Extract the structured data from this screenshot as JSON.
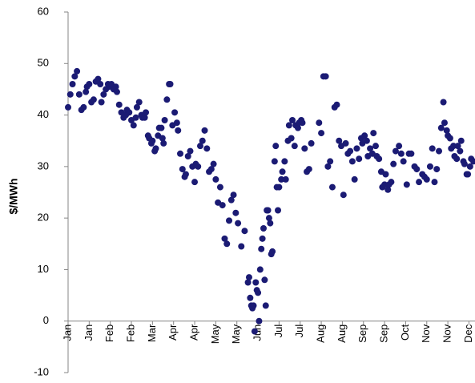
{
  "chart_data": {
    "type": "scatter",
    "y_label": "$/MWh",
    "color": "#1b1b74",
    "xlim": [
      0,
      365
    ],
    "ylim": [
      -10,
      60
    ],
    "yticks": [
      -10,
      0,
      10,
      20,
      30,
      40,
      50,
      60
    ],
    "xticks": [
      {
        "value": 0,
        "label": "Jan"
      },
      {
        "value": 19,
        "label": "Jan"
      },
      {
        "value": 38,
        "label": "Feb"
      },
      {
        "value": 57,
        "label": "Feb"
      },
      {
        "value": 76,
        "label": "Mar"
      },
      {
        "value": 95,
        "label": "Apr"
      },
      {
        "value": 114,
        "label": "Apr"
      },
      {
        "value": 133,
        "label": "May"
      },
      {
        "value": 152,
        "label": "May"
      },
      {
        "value": 171,
        "label": "Jun"
      },
      {
        "value": 190,
        "label": "Jul"
      },
      {
        "value": 209,
        "label": "Jul"
      },
      {
        "value": 228,
        "label": "Aug"
      },
      {
        "value": 247,
        "label": "Aug"
      },
      {
        "value": 266,
        "label": "Sep"
      },
      {
        "value": 285,
        "label": "Sep"
      },
      {
        "value": 304,
        "label": "Oct"
      },
      {
        "value": 323,
        "label": "Nov"
      },
      {
        "value": 342,
        "label": "Nov"
      },
      {
        "value": 361,
        "label": "Dec"
      }
    ],
    "x": [
      0,
      2,
      4,
      6,
      8,
      10,
      12,
      14,
      16,
      17,
      19,
      21,
      23,
      25,
      27,
      29,
      30,
      32,
      34,
      36,
      37,
      39,
      41,
      43,
      44,
      46,
      48,
      50,
      52,
      53,
      55,
      57,
      59,
      61,
      62,
      64,
      66,
      67,
      69,
      70,
      72,
      73,
      75,
      76,
      78,
      79,
      81,
      82,
      84,
      85,
      86,
      87,
      89,
      91,
      92,
      94,
      96,
      98,
      99,
      101,
      103,
      105,
      106,
      108,
      110,
      112,
      114,
      115,
      117,
      119,
      121,
      123,
      125,
      127,
      129,
      131,
      133,
      135,
      137,
      139,
      141,
      143,
      145,
      147,
      149,
      151,
      153,
      156,
      159,
      162,
      163,
      164,
      165,
      166,
      167,
      168,
      169,
      170,
      171,
      172,
      173,
      174,
      175,
      176,
      177,
      178,
      179,
      180,
      181,
      182,
      183,
      184,
      186,
      187,
      188,
      189,
      190,
      192,
      193,
      195,
      196,
      198,
      199,
      201,
      202,
      204,
      205,
      207,
      208,
      210,
      211,
      213,
      215,
      217,
      219,
      226,
      228,
      230,
      232,
      234,
      236,
      238,
      240,
      242,
      244,
      246,
      248,
      250,
      252,
      254,
      256,
      258,
      260,
      262,
      264,
      265,
      267,
      269,
      270,
      272,
      274,
      275,
      277,
      278,
      280,
      282,
      283,
      285,
      286,
      288,
      289,
      291,
      293,
      295,
      298,
      300,
      302,
      305,
      307,
      309,
      312,
      314,
      316,
      319,
      321,
      323,
      326,
      328,
      330,
      332,
      334,
      336,
      338,
      339,
      341,
      342,
      344,
      345,
      347,
      348,
      350,
      351,
      353,
      354,
      356,
      357,
      359,
      360,
      362,
      363,
      365
    ],
    "values": [
      41.5,
      44,
      46,
      47.5,
      48.5,
      44,
      41,
      41.5,
      44.5,
      45.5,
      46,
      42.5,
      43,
      46.5,
      47,
      46,
      42.5,
      44,
      45,
      46,
      45.5,
      46,
      45,
      45.5,
      44.5,
      42,
      40.5,
      39.5,
      40,
      41,
      40.5,
      39,
      38,
      39.5,
      41.5,
      42.5,
      40,
      39.5,
      39.5,
      40.5,
      36,
      35.5,
      34.5,
      35,
      33,
      33.5,
      36,
      37.5,
      37.5,
      35.5,
      34.5,
      39,
      43,
      46,
      46,
      38,
      40.5,
      38.5,
      37,
      32.5,
      29.5,
      28,
      28.5,
      32,
      33,
      30,
      27,
      30.5,
      30,
      34,
      35,
      37,
      33.5,
      29,
      29.5,
      30.5,
      27.5,
      23,
      26,
      22.5,
      16,
      15,
      19.5,
      23.5,
      24.5,
      21,
      19,
      14.5,
      17.5,
      7.5,
      8.5,
      4.5,
      3,
      2.5,
      3,
      -2,
      7.5,
      6,
      5.5,
      0,
      10,
      14,
      16,
      18,
      8,
      3,
      21.5,
      21.5,
      20,
      19,
      13,
      13.5,
      31,
      34,
      26,
      21.5,
      26,
      27.5,
      29,
      31,
      27.5,
      35,
      38,
      35.5,
      39,
      34,
      38,
      37.5,
      38.5,
      39,
      38.5,
      33.5,
      29,
      29.5,
      34.5,
      38.5,
      36.5,
      47.5,
      47.5,
      30,
      31,
      26,
      41.5,
      42,
      35,
      34,
      24.5,
      34.5,
      32.5,
      33,
      31,
      27.5,
      33.5,
      31.5,
      35.5,
      34.5,
      36,
      35,
      32,
      33.5,
      32.5,
      36.5,
      34,
      32,
      31.5,
      29,
      26,
      26.5,
      28.5,
      25.5,
      26.5,
      27,
      30.5,
      33,
      34,
      32.5,
      31,
      26.5,
      32.5,
      32.5,
      30,
      29.5,
      27,
      28.5,
      28,
      27.5,
      30,
      33.5,
      27,
      29.5,
      33,
      37.5,
      42.5,
      38.5,
      37,
      36,
      35.5,
      33.5,
      34,
      32,
      31.5,
      34,
      33,
      35,
      31,
      30.5,
      28.5,
      28.5,
      30,
      31.5,
      31
    ]
  }
}
